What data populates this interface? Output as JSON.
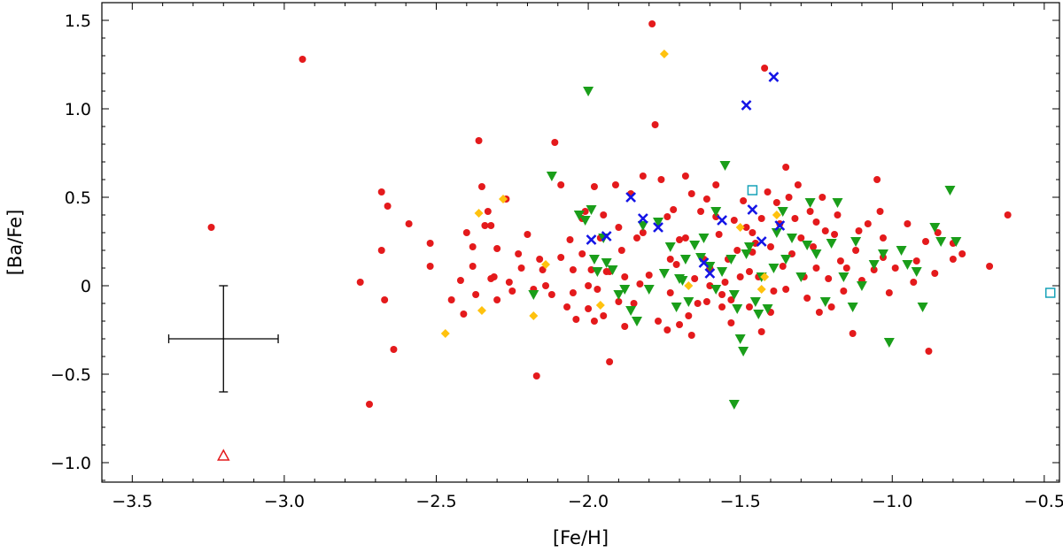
{
  "chart_data": {
    "type": "scatter",
    "title": "",
    "xlabel": "[Fe/H]",
    "ylabel": "[Ba/Fe]",
    "xlim": [
      -3.6,
      -0.45
    ],
    "ylim": [
      -1.11,
      1.6
    ],
    "x_ticks": [
      -3.5,
      -3.0,
      -2.5,
      -2.0,
      -1.5,
      -1.0,
      -0.5
    ],
    "x_tick_labels": [
      "−3.5",
      "−3.0",
      "−2.5",
      "−2.0",
      "−1.5",
      "−1.0",
      "−0.5"
    ],
    "y_ticks": [
      -1.0,
      -0.5,
      0,
      0.5,
      1.0,
      1.5
    ],
    "y_tick_labels": [
      "−1.0",
      "−0.5",
      "0",
      "0.5",
      "1.0",
      "1.5"
    ],
    "grid": false,
    "legend": "none",
    "error_bar": {
      "x": -3.2,
      "y": -0.3,
      "xerr": 0.18,
      "yerr_low": 0.3,
      "yerr_high": 0.3
    },
    "series": [
      {
        "marker": "circle",
        "color": "#e41a1c",
        "points": [
          [
            -3.24,
            0.33
          ],
          [
            -2.94,
            1.28
          ],
          [
            -2.75,
            0.02
          ],
          [
            -2.72,
            -0.67
          ],
          [
            -2.68,
            0.53
          ],
          [
            -2.67,
            -0.08
          ],
          [
            -2.66,
            0.45
          ],
          [
            -2.64,
            -0.36
          ],
          [
            -2.68,
            0.2
          ],
          [
            -2.59,
            0.35
          ],
          [
            -2.52,
            0.24
          ],
          [
            -2.52,
            0.11
          ],
          [
            -2.42,
            0.03
          ],
          [
            -2.41,
            -0.16
          ],
          [
            -2.4,
            0.3
          ],
          [
            -2.38,
            0.11
          ],
          [
            -2.38,
            0.22
          ],
          [
            -2.37,
            -0.05
          ],
          [
            -2.36,
            0.82
          ],
          [
            -2.35,
            0.56
          ],
          [
            -2.34,
            0.34
          ],
          [
            -2.33,
            0.42
          ],
          [
            -2.32,
            0.34
          ],
          [
            -2.32,
            0.04
          ],
          [
            -2.31,
            0.05
          ],
          [
            -2.3,
            -0.08
          ],
          [
            -2.27,
            0.49
          ],
          [
            -2.25,
            -0.03
          ],
          [
            -2.23,
            0.18
          ],
          [
            -2.22,
            0.1
          ],
          [
            -2.2,
            0.29
          ],
          [
            -2.18,
            -0.02
          ],
          [
            -2.17,
            -0.51
          ],
          [
            -2.16,
            0.15
          ],
          [
            -2.14,
            0.0
          ],
          [
            -2.12,
            -0.05
          ],
          [
            -2.11,
            0.81
          ],
          [
            -2.09,
            0.57
          ],
          [
            -2.09,
            0.16
          ],
          [
            -2.07,
            -0.12
          ],
          [
            -2.06,
            0.26
          ],
          [
            -2.05,
            0.09
          ],
          [
            -2.04,
            -0.19
          ],
          [
            -2.02,
            0.38
          ],
          [
            -2.02,
            0.18
          ],
          [
            -2.01,
            0.42
          ],
          [
            -2.0,
            -0.13
          ],
          [
            -1.99,
            0.09
          ],
          [
            -1.98,
            -0.2
          ],
          [
            -1.97,
            -0.02
          ],
          [
            -1.96,
            0.27
          ],
          [
            -1.95,
            -0.17
          ],
          [
            -1.94,
            0.08
          ],
          [
            -1.93,
            -0.43
          ],
          [
            -1.91,
            0.57
          ],
          [
            -1.9,
            -0.09
          ],
          [
            -1.89,
            0.2
          ],
          [
            -1.88,
            -0.23
          ],
          [
            -1.86,
            0.52
          ],
          [
            -1.85,
            -0.1
          ],
          [
            -1.83,
            0.01
          ],
          [
            -1.82,
            0.62
          ],
          [
            -1.82,
            0.3
          ],
          [
            -1.8,
            0.06
          ],
          [
            -1.79,
            1.48
          ],
          [
            -1.78,
            0.91
          ],
          [
            -1.77,
            -0.2
          ],
          [
            -1.76,
            0.6
          ],
          [
            -1.74,
            0.39
          ],
          [
            -1.73,
            -0.04
          ],
          [
            -1.71,
            0.12
          ],
          [
            -1.7,
            0.26
          ],
          [
            -1.7,
            -0.22
          ],
          [
            -1.68,
            0.62
          ],
          [
            -1.68,
            0.27
          ],
          [
            -1.67,
            -0.17
          ],
          [
            -1.66,
            0.52
          ],
          [
            -1.65,
            0.04
          ],
          [
            -1.64,
            -0.1
          ],
          [
            -1.63,
            0.42
          ],
          [
            -1.62,
            0.15
          ],
          [
            -1.61,
            -0.09
          ],
          [
            -1.6,
            0.1
          ],
          [
            -1.58,
            0.57
          ],
          [
            -1.57,
            0.29
          ],
          [
            -1.56,
            -0.05
          ],
          [
            -1.55,
            0.02
          ],
          [
            -1.54,
            0.15
          ],
          [
            -1.53,
            -0.08
          ],
          [
            -1.52,
            0.37
          ],
          [
            -1.51,
            0.2
          ],
          [
            -1.5,
            0.05
          ],
          [
            -1.49,
            0.48
          ],
          [
            -1.48,
            0.33
          ],
          [
            -1.47,
            -0.12
          ],
          [
            -1.46,
            0.19
          ],
          [
            -1.45,
            0.24
          ],
          [
            -1.44,
            0.05
          ],
          [
            -1.43,
            0.38
          ],
          [
            -1.42,
            1.23
          ],
          [
            -1.41,
            0.53
          ],
          [
            -1.4,
            0.22
          ],
          [
            -1.39,
            -0.03
          ],
          [
            -1.38,
            0.47
          ],
          [
            -1.37,
            0.35
          ],
          [
            -1.36,
            0.11
          ],
          [
            -1.35,
            0.67
          ],
          [
            -1.34,
            0.5
          ],
          [
            -1.33,
            0.18
          ],
          [
            -1.32,
            0.38
          ],
          [
            -1.31,
            0.57
          ],
          [
            -1.3,
            0.27
          ],
          [
            -1.29,
            0.05
          ],
          [
            -1.28,
            -0.07
          ],
          [
            -1.27,
            0.42
          ],
          [
            -1.26,
            0.22
          ],
          [
            -1.25,
            0.1
          ],
          [
            -1.24,
            -0.15
          ],
          [
            -1.23,
            0.5
          ],
          [
            -1.22,
            0.31
          ],
          [
            -1.21,
            0.04
          ],
          [
            -1.2,
            -0.12
          ],
          [
            -1.19,
            0.29
          ],
          [
            -1.18,
            0.4
          ],
          [
            -1.17,
            0.14
          ],
          [
            -1.16,
            -0.03
          ],
          [
            -1.15,
            0.1
          ],
          [
            -1.13,
            -0.27
          ],
          [
            -1.12,
            0.2
          ],
          [
            -1.1,
            0.03
          ],
          [
            -1.08,
            0.35
          ],
          [
            -1.06,
            0.09
          ],
          [
            -1.05,
            0.6
          ],
          [
            -1.04,
            0.42
          ],
          [
            -1.03,
            0.27
          ],
          [
            -1.01,
            -0.04
          ],
          [
            -0.99,
            0.1
          ],
          [
            -0.95,
            0.35
          ],
          [
            -0.93,
            0.02
          ],
          [
            -0.89,
            0.25
          ],
          [
            -0.88,
            -0.37
          ],
          [
            -0.85,
            0.3
          ],
          [
            -0.8,
            0.24
          ],
          [
            -0.77,
            0.18
          ],
          [
            -0.68,
            0.11
          ],
          [
            -0.62,
            0.4
          ],
          [
            -1.98,
            0.56
          ],
          [
            -1.93,
            0.08
          ],
          [
            -1.61,
            0.49
          ],
          [
            -1.56,
            -0.12
          ],
          [
            -1.46,
            0.3
          ],
          [
            -1.74,
            -0.25
          ],
          [
            -1.66,
            -0.28
          ],
          [
            -1.53,
            -0.21
          ],
          [
            -1.43,
            -0.26
          ],
          [
            -1.4,
            -0.15
          ],
          [
            -2.0,
            0.0
          ],
          [
            -1.88,
            0.05
          ],
          [
            -1.73,
            0.15
          ],
          [
            -1.6,
            0.0
          ],
          [
            -2.26,
            0.02
          ],
          [
            -2.45,
            -0.08
          ],
          [
            -2.3,
            0.21
          ],
          [
            -2.15,
            0.09
          ],
          [
            -1.95,
            0.4
          ],
          [
            -1.84,
            0.27
          ],
          [
            -1.72,
            0.43
          ],
          [
            -1.58,
            0.39
          ],
          [
            -1.47,
            0.08
          ],
          [
            -1.35,
            -0.02
          ],
          [
            -1.25,
            0.36
          ],
          [
            -1.11,
            0.31
          ],
          [
            -1.03,
            0.16
          ],
          [
            -0.92,
            0.14
          ],
          [
            -0.86,
            0.07
          ],
          [
            -0.8,
            0.15
          ],
          [
            -2.05,
            -0.04
          ],
          [
            -1.9,
            0.33
          ]
        ]
      },
      {
        "marker": "triangle-down",
        "color": "#1a9e1a",
        "points": [
          [
            -2.12,
            0.62
          ],
          [
            -2.0,
            1.1
          ],
          [
            -2.01,
            0.37
          ],
          [
            -1.99,
            0.43
          ],
          [
            -1.98,
            0.15
          ],
          [
            -1.97,
            0.08
          ],
          [
            -1.95,
            0.27
          ],
          [
            -1.94,
            0.13
          ],
          [
            -1.92,
            0.09
          ],
          [
            -1.9,
            -0.05
          ],
          [
            -1.88,
            -0.02
          ],
          [
            -1.86,
            -0.14
          ],
          [
            -1.84,
            -0.2
          ],
          [
            -1.8,
            -0.02
          ],
          [
            -1.77,
            0.36
          ],
          [
            -1.75,
            0.07
          ],
          [
            -1.73,
            0.22
          ],
          [
            -1.71,
            -0.12
          ],
          [
            -1.69,
            0.03
          ],
          [
            -1.67,
            -0.09
          ],
          [
            -1.65,
            0.23
          ],
          [
            -1.63,
            0.16
          ],
          [
            -1.6,
            0.11
          ],
          [
            -1.58,
            -0.02
          ],
          [
            -1.55,
            0.68
          ],
          [
            -1.53,
            0.15
          ],
          [
            -1.52,
            -0.05
          ],
          [
            -1.51,
            -0.13
          ],
          [
            -1.5,
            -0.3
          ],
          [
            -1.49,
            -0.37
          ],
          [
            -1.47,
            0.22
          ],
          [
            -1.45,
            -0.09
          ],
          [
            -1.43,
            0.05
          ],
          [
            -1.41,
            -0.13
          ],
          [
            -1.39,
            0.1
          ],
          [
            -1.36,
            0.42
          ],
          [
            -1.33,
            0.27
          ],
          [
            -1.3,
            0.05
          ],
          [
            -1.27,
            0.47
          ],
          [
            -1.25,
            0.18
          ],
          [
            -1.22,
            -0.09
          ],
          [
            -1.2,
            0.24
          ],
          [
            -1.18,
            0.47
          ],
          [
            -1.16,
            0.05
          ],
          [
            -1.13,
            -0.12
          ],
          [
            -1.1,
            0.0
          ],
          [
            -1.06,
            0.12
          ],
          [
            -1.03,
            0.18
          ],
          [
            -1.01,
            -0.32
          ],
          [
            -0.97,
            0.2
          ],
          [
            -0.92,
            0.08
          ],
          [
            -0.9,
            -0.12
          ],
          [
            -0.86,
            0.33
          ],
          [
            -0.84,
            0.25
          ],
          [
            -0.81,
            0.54
          ],
          [
            -0.79,
            0.25
          ],
          [
            -2.18,
            -0.05
          ],
          [
            -1.52,
            -0.67
          ],
          [
            -1.7,
            0.04
          ],
          [
            -1.62,
            0.27
          ],
          [
            -1.56,
            0.08
          ],
          [
            -1.48,
            0.18
          ],
          [
            -1.44,
            -0.16
          ],
          [
            -1.38,
            0.3
          ],
          [
            -1.35,
            0.15
          ],
          [
            -1.28,
            0.23
          ],
          [
            -1.12,
            0.25
          ],
          [
            -0.95,
            0.12
          ],
          [
            -2.03,
            0.4
          ],
          [
            -1.82,
            0.34
          ],
          [
            -1.68,
            0.15
          ],
          [
            -1.58,
            0.42
          ]
        ]
      },
      {
        "marker": "diamond",
        "color": "#ffc20e",
        "points": [
          [
            -2.47,
            -0.27
          ],
          [
            -2.36,
            0.41
          ],
          [
            -2.35,
            -0.14
          ],
          [
            -2.28,
            0.49
          ],
          [
            -2.18,
            -0.17
          ],
          [
            -2.14,
            0.12
          ],
          [
            -1.96,
            -0.11
          ],
          [
            -1.75,
            1.31
          ],
          [
            -1.67,
            0.0
          ],
          [
            -1.5,
            0.33
          ],
          [
            -1.43,
            -0.02
          ],
          [
            -1.38,
            0.4
          ],
          [
            -1.42,
            0.05
          ]
        ]
      },
      {
        "marker": "cross",
        "color": "#1414e6",
        "points": [
          [
            -1.99,
            0.26
          ],
          [
            -1.94,
            0.28
          ],
          [
            -1.86,
            0.5
          ],
          [
            -1.82,
            0.38
          ],
          [
            -1.77,
            0.33
          ],
          [
            -1.62,
            0.13
          ],
          [
            -1.6,
            0.07
          ],
          [
            -1.56,
            0.37
          ],
          [
            -1.48,
            1.02
          ],
          [
            -1.46,
            0.43
          ],
          [
            -1.43,
            0.25
          ],
          [
            -1.39,
            1.18
          ],
          [
            -1.37,
            0.34
          ]
        ]
      },
      {
        "marker": "square-open",
        "color": "#17a2b8",
        "points": [
          [
            -1.46,
            0.54
          ],
          [
            -0.48,
            -0.04
          ]
        ]
      },
      {
        "marker": "triangle-up-open",
        "color": "#e41a1c",
        "points": [
          [
            -3.2,
            -0.96
          ]
        ]
      }
    ]
  }
}
